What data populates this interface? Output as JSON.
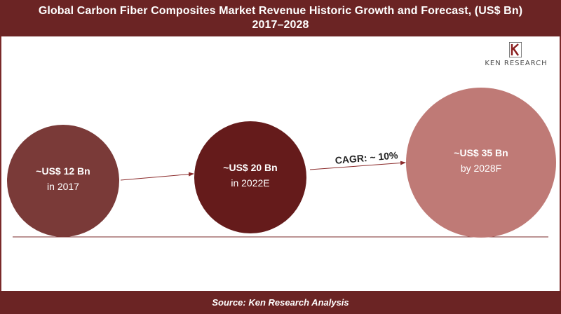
{
  "header": {
    "title_line1": "Global Carbon Fiber Composites Market Revenue Historic Growth and Forecast, (US$ Bn)",
    "title_line2": "2017–2028"
  },
  "logo": {
    "text": "KEN RESEARCH",
    "mark": "K"
  },
  "footer": {
    "source": "Source: Ken Research Analysis"
  },
  "chart_data": {
    "type": "bubble",
    "title": "Global Carbon Fiber Composites Market Revenue Historic Growth and Forecast, (US$ Bn) 2017–2028",
    "points": [
      {
        "value_label": "~US$ 12 Bn",
        "period_label": "in 2017",
        "value": 12,
        "year": 2017,
        "color": "#7a3a38"
      },
      {
        "value_label": "~US$ 20 Bn",
        "period_label": "in 2022E",
        "value": 20,
        "year": 2022,
        "color": "#651b1b"
      },
      {
        "value_label": "~US$ 35 Bn",
        "period_label": "by 2028F",
        "value": 35,
        "year": 2028,
        "color": "#bf7a76"
      }
    ],
    "annotation": "CAGR: ~ 10%"
  }
}
